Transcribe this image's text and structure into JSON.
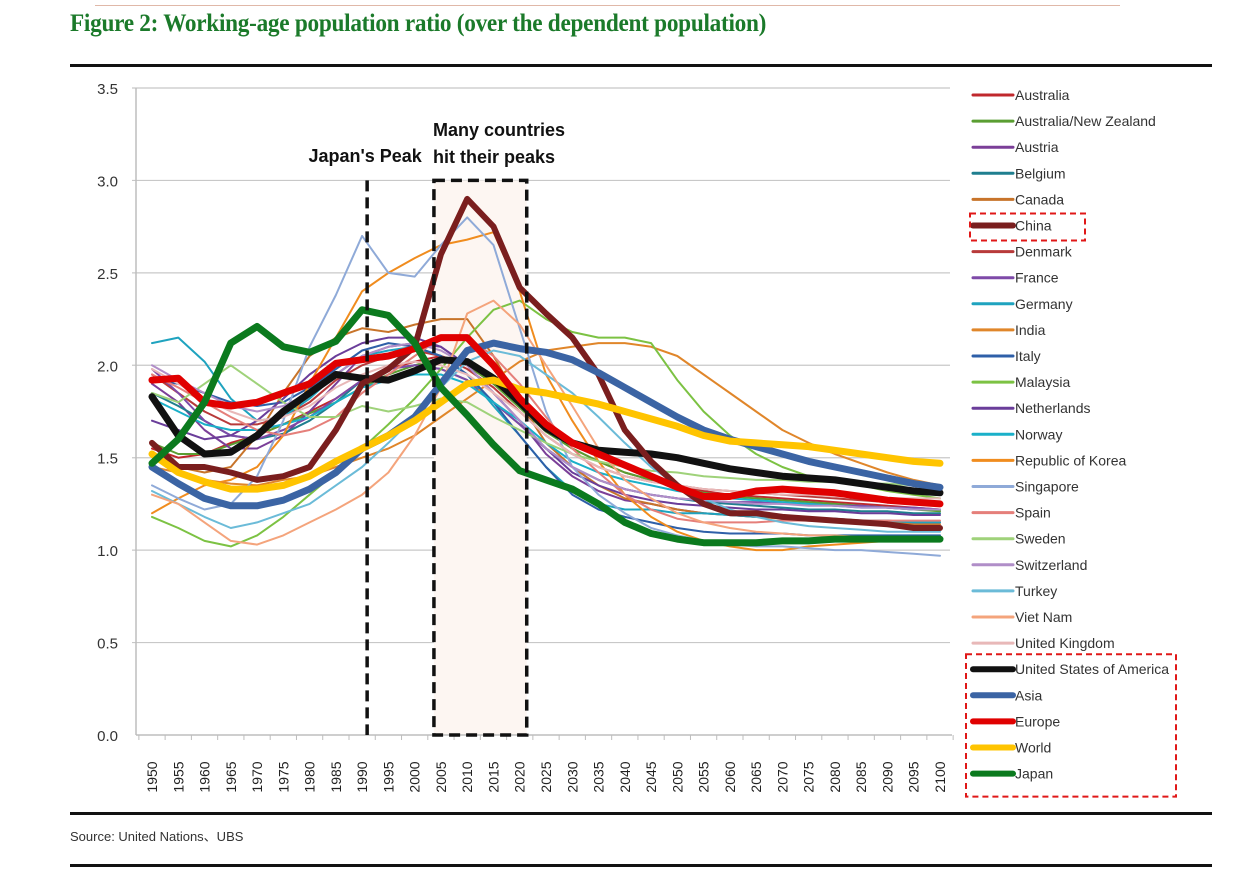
{
  "figure": {
    "title": "Figure 2:  Working-age population ratio (over the dependent population)",
    "source": "Source: United Nations、UBS",
    "title_color": "#1b7a2a"
  },
  "chart_data": {
    "type": "line",
    "title": "Figure 2:  Working-age population ratio (over the dependent population)",
    "xlabel": "",
    "ylabel": "",
    "ylim": [
      0,
      3.5
    ],
    "yticks": [
      "0.0",
      "0.5",
      "1.0",
      "1.5",
      "2.0",
      "2.5",
      "3.0",
      "3.5"
    ],
    "ytick_values": [
      0,
      0.5,
      1.0,
      1.5,
      2.0,
      2.5,
      3.0,
      3.5
    ],
    "x": [
      "1950",
      "1955",
      "1960",
      "1965",
      "1970",
      "1975",
      "1980",
      "1985",
      "1990",
      "1995",
      "2000",
      "2005",
      "2010",
      "2015",
      "2020",
      "2025",
      "2030",
      "2035",
      "2040",
      "2045",
      "2050",
      "2055",
      "2060",
      "2065",
      "2070",
      "2075",
      "2080",
      "2085",
      "2090",
      "2095",
      "2100"
    ],
    "grid": "horizontal",
    "legend_position": "right",
    "annotations": [
      {
        "type": "vline",
        "x": "1990",
        "label": "Japan's Peak",
        "y_top": 3.0
      },
      {
        "type": "box",
        "x_from": "2005",
        "x_to": "2020",
        "label_line1": "Many countries",
        "label_line2": "hit their peaks",
        "y_top": 3.0
      }
    ],
    "highlight_boxes": [
      "China",
      "United States of America / Asia / Europe / World / Japan"
    ],
    "series": [
      {
        "name": "Australia",
        "color": "#c0282d",
        "width": 2,
        "values": [
          1.55,
          1.5,
          1.52,
          1.58,
          1.62,
          1.68,
          1.75,
          1.82,
          1.92,
          1.98,
          2.02,
          2.05,
          2.0,
          1.9,
          1.78,
          1.65,
          1.55,
          1.48,
          1.42,
          1.38,
          1.35,
          1.32,
          1.3,
          1.29,
          1.28,
          1.27,
          1.26,
          1.25,
          1.24,
          1.23,
          1.22
        ]
      },
      {
        "name": "Australia/New Zealand",
        "color": "#5a9e32",
        "width": 2,
        "values": [
          1.58,
          1.52,
          1.52,
          1.57,
          1.62,
          1.68,
          1.74,
          1.8,
          1.88,
          1.95,
          2.0,
          2.04,
          2.0,
          1.9,
          1.77,
          1.64,
          1.55,
          1.48,
          1.42,
          1.38,
          1.34,
          1.31,
          1.29,
          1.28,
          1.27,
          1.26,
          1.25,
          1.24,
          1.23,
          1.22,
          1.21
        ]
      },
      {
        "name": "Austria",
        "color": "#7b3f98",
        "width": 2,
        "values": [
          1.9,
          1.8,
          1.65,
          1.55,
          1.55,
          1.62,
          1.75,
          1.9,
          2.05,
          2.1,
          2.12,
          2.1,
          2.0,
          1.85,
          1.7,
          1.52,
          1.4,
          1.32,
          1.27,
          1.25,
          1.22,
          1.2,
          1.19,
          1.18,
          1.18,
          1.17,
          1.17,
          1.16,
          1.16,
          1.15,
          1.15
        ]
      },
      {
        "name": "Belgium",
        "color": "#1f7f8f",
        "width": 2,
        "values": [
          1.85,
          1.78,
          1.7,
          1.62,
          1.6,
          1.63,
          1.7,
          1.8,
          1.92,
          1.98,
          2.0,
          1.98,
          1.92,
          1.8,
          1.68,
          1.55,
          1.45,
          1.38,
          1.33,
          1.3,
          1.28,
          1.26,
          1.25,
          1.24,
          1.23,
          1.22,
          1.22,
          1.21,
          1.21,
          1.2,
          1.2
        ]
      },
      {
        "name": "Canada",
        "color": "#c8742a",
        "width": 2,
        "values": [
          1.58,
          1.45,
          1.42,
          1.45,
          1.62,
          1.85,
          2.05,
          2.15,
          2.2,
          2.18,
          2.22,
          2.25,
          2.25,
          2.05,
          1.8,
          1.58,
          1.45,
          1.35,
          1.28,
          1.25,
          1.22,
          1.2,
          1.19,
          1.18,
          1.17,
          1.16,
          1.16,
          1.15,
          1.15,
          1.14,
          1.14
        ]
      },
      {
        "name": "China",
        "color": "#7a1e1e",
        "width": 6,
        "values": [
          1.58,
          1.45,
          1.45,
          1.42,
          1.38,
          1.4,
          1.45,
          1.65,
          1.9,
          1.98,
          2.1,
          2.6,
          2.9,
          2.75,
          2.42,
          2.28,
          2.15,
          1.95,
          1.65,
          1.48,
          1.35,
          1.25,
          1.2,
          1.2,
          1.18,
          1.17,
          1.16,
          1.15,
          1.14,
          1.12,
          1.12
        ]
      },
      {
        "name": "Denmark",
        "color": "#b83a3a",
        "width": 2,
        "values": [
          1.95,
          1.85,
          1.75,
          1.68,
          1.68,
          1.72,
          1.8,
          1.92,
          2.0,
          2.05,
          2.08,
          2.05,
          1.98,
          1.88,
          1.75,
          1.62,
          1.52,
          1.45,
          1.4,
          1.37,
          1.35,
          1.33,
          1.32,
          1.31,
          1.3,
          1.29,
          1.28,
          1.27,
          1.26,
          1.26,
          1.25
        ]
      },
      {
        "name": "France",
        "color": "#7e4aa8",
        "width": 2,
        "values": [
          1.98,
          1.85,
          1.7,
          1.62,
          1.6,
          1.65,
          1.72,
          1.82,
          1.92,
          1.98,
          2.0,
          1.98,
          1.92,
          1.8,
          1.68,
          1.55,
          1.45,
          1.38,
          1.33,
          1.3,
          1.28,
          1.27,
          1.26,
          1.26,
          1.25,
          1.25,
          1.24,
          1.24,
          1.23,
          1.23,
          1.22
        ]
      },
      {
        "name": "Germany",
        "color": "#1fa3bf",
        "width": 2,
        "values": [
          2.12,
          2.15,
          2.02,
          1.82,
          1.7,
          1.72,
          1.82,
          1.95,
          2.05,
          2.08,
          2.1,
          2.05,
          1.95,
          1.78,
          1.62,
          1.45,
          1.32,
          1.25,
          1.22,
          1.22,
          1.2,
          1.2,
          1.19,
          1.18,
          1.18,
          1.17,
          1.17,
          1.16,
          1.16,
          1.15,
          1.15
        ]
      },
      {
        "name": "India",
        "color": "#e0862a",
        "width": 2,
        "values": [
          1.45,
          1.42,
          1.38,
          1.36,
          1.35,
          1.38,
          1.4,
          1.45,
          1.5,
          1.55,
          1.62,
          1.72,
          1.82,
          1.92,
          2.02,
          2.08,
          2.1,
          2.12,
          2.12,
          2.1,
          2.05,
          1.95,
          1.85,
          1.75,
          1.65,
          1.58,
          1.52,
          1.47,
          1.42,
          1.38,
          1.35
        ]
      },
      {
        "name": "Italy",
        "color": "#2e5fa8",
        "width": 2,
        "values": [
          1.92,
          1.9,
          1.85,
          1.8,
          1.78,
          1.8,
          1.88,
          1.98,
          2.08,
          2.12,
          2.1,
          2.05,
          1.95,
          1.8,
          1.62,
          1.45,
          1.3,
          1.22,
          1.18,
          1.15,
          1.12,
          1.1,
          1.09,
          1.09,
          1.09,
          1.08,
          1.08,
          1.08,
          1.08,
          1.08,
          1.08
        ]
      },
      {
        "name": "Malaysia",
        "color": "#7cc243",
        "width": 2,
        "values": [
          1.18,
          1.12,
          1.05,
          1.02,
          1.08,
          1.18,
          1.3,
          1.42,
          1.55,
          1.68,
          1.82,
          1.98,
          2.15,
          2.3,
          2.35,
          2.25,
          2.18,
          2.15,
          2.15,
          2.12,
          1.92,
          1.75,
          1.62,
          1.52,
          1.45,
          1.4,
          1.37,
          1.35,
          1.32,
          1.3,
          1.28
        ]
      },
      {
        "name": "Netherlands",
        "color": "#6a3d9a",
        "width": 2,
        "values": [
          1.7,
          1.65,
          1.6,
          1.62,
          1.7,
          1.82,
          1.95,
          2.05,
          2.12,
          2.15,
          2.15,
          2.1,
          2.0,
          1.85,
          1.7,
          1.55,
          1.42,
          1.35,
          1.3,
          1.27,
          1.25,
          1.24,
          1.23,
          1.22,
          1.22,
          1.21,
          1.21,
          1.2,
          1.2,
          1.19,
          1.19
        ]
      },
      {
        "name": "Norway",
        "color": "#1ab0c9",
        "width": 2,
        "values": [
          1.82,
          1.75,
          1.68,
          1.65,
          1.65,
          1.68,
          1.72,
          1.8,
          1.88,
          1.92,
          1.95,
          1.95,
          1.9,
          1.8,
          1.7,
          1.58,
          1.48,
          1.42,
          1.38,
          1.35,
          1.32,
          1.3,
          1.28,
          1.27,
          1.26,
          1.25,
          1.24,
          1.23,
          1.23,
          1.22,
          1.22
        ]
      },
      {
        "name": "Republic of Korea",
        "color": "#f08c1e",
        "width": 2,
        "values": [
          1.2,
          1.28,
          1.35,
          1.38,
          1.45,
          1.62,
          1.9,
          2.15,
          2.4,
          2.5,
          2.58,
          2.65,
          2.68,
          2.72,
          2.4,
          1.95,
          1.7,
          1.48,
          1.3,
          1.18,
          1.1,
          1.05,
          1.02,
          1.0,
          1.0,
          1.02,
          1.03,
          1.04,
          1.05,
          1.05,
          1.05
        ]
      },
      {
        "name": "Singapore",
        "color": "#8faad8",
        "width": 2,
        "values": [
          1.35,
          1.28,
          1.22,
          1.25,
          1.4,
          1.7,
          2.1,
          2.38,
          2.7,
          2.5,
          2.48,
          2.65,
          2.8,
          2.65,
          2.2,
          1.75,
          1.45,
          1.3,
          1.2,
          1.12,
          1.08,
          1.05,
          1.03,
          1.02,
          1.02,
          1.01,
          1.0,
          1.0,
          0.99,
          0.98,
          0.97
        ]
      },
      {
        "name": "Spain",
        "color": "#e57f7a",
        "width": 2,
        "values": [
          1.95,
          1.88,
          1.8,
          1.72,
          1.65,
          1.62,
          1.65,
          1.72,
          1.85,
          1.95,
          2.05,
          2.15,
          2.15,
          2.05,
          1.9,
          1.72,
          1.55,
          1.42,
          1.3,
          1.22,
          1.17,
          1.15,
          1.15,
          1.15,
          1.16,
          1.16,
          1.16,
          1.16,
          1.16,
          1.16,
          1.16
        ]
      },
      {
        "name": "Sweden",
        "color": "#9fd27a",
        "width": 2,
        "values": [
          1.85,
          1.8,
          1.9,
          2.0,
          1.9,
          1.8,
          1.72,
          1.72,
          1.78,
          1.75,
          1.78,
          1.82,
          1.8,
          1.72,
          1.65,
          1.58,
          1.52,
          1.48,
          1.45,
          1.43,
          1.42,
          1.4,
          1.39,
          1.38,
          1.38,
          1.37,
          1.37,
          1.36,
          1.36,
          1.35,
          1.35
        ]
      },
      {
        "name": "Switzerland",
        "color": "#b08ec8",
        "width": 2,
        "values": [
          2.0,
          1.92,
          1.85,
          1.78,
          1.75,
          1.78,
          1.85,
          1.95,
          2.05,
          2.1,
          2.12,
          2.08,
          2.0,
          1.85,
          1.7,
          1.55,
          1.45,
          1.38,
          1.33,
          1.3,
          1.28,
          1.27,
          1.26,
          1.25,
          1.25,
          1.24,
          1.24,
          1.23,
          1.23,
          1.22,
          1.22
        ]
      },
      {
        "name": "Turkey",
        "color": "#6bbbd8",
        "width": 2,
        "values": [
          1.32,
          1.25,
          1.18,
          1.12,
          1.15,
          1.2,
          1.25,
          1.35,
          1.45,
          1.58,
          1.72,
          1.88,
          2.02,
          2.08,
          2.05,
          1.95,
          1.85,
          1.72,
          1.58,
          1.45,
          1.35,
          1.28,
          1.22,
          1.18,
          1.15,
          1.13,
          1.12,
          1.11,
          1.1,
          1.1,
          1.1
        ]
      },
      {
        "name": "Viet Nam",
        "color": "#f4a47c",
        "width": 2,
        "values": [
          1.3,
          1.25,
          1.15,
          1.05,
          1.03,
          1.08,
          1.15,
          1.22,
          1.3,
          1.42,
          1.62,
          1.88,
          2.28,
          2.35,
          2.22,
          2.0,
          1.78,
          1.55,
          1.38,
          1.28,
          1.2,
          1.15,
          1.12,
          1.1,
          1.09,
          1.08,
          1.08,
          1.07,
          1.07,
          1.06,
          1.06
        ]
      },
      {
        "name": "United Kingdom",
        "color": "#e8b8b8",
        "width": 2,
        "values": [
          1.98,
          1.9,
          1.82,
          1.75,
          1.7,
          1.72,
          1.78,
          1.88,
          1.95,
          2.0,
          2.02,
          2.0,
          1.95,
          1.85,
          1.75,
          1.62,
          1.52,
          1.45,
          1.4,
          1.37,
          1.35,
          1.33,
          1.32,
          1.31,
          1.3,
          1.3,
          1.29,
          1.29,
          1.28,
          1.28,
          1.28
        ]
      },
      {
        "name": "United States of America",
        "color": "#111111",
        "width": 6,
        "values": [
          1.83,
          1.62,
          1.52,
          1.53,
          1.62,
          1.75,
          1.85,
          1.95,
          1.93,
          1.92,
          1.97,
          2.03,
          2.02,
          1.93,
          1.8,
          1.66,
          1.58,
          1.54,
          1.53,
          1.52,
          1.5,
          1.47,
          1.44,
          1.42,
          1.4,
          1.39,
          1.38,
          1.36,
          1.34,
          1.32,
          1.31
        ]
      },
      {
        "name": "Asia",
        "color": "#3b64a4",
        "width": 7,
        "values": [
          1.45,
          1.36,
          1.28,
          1.24,
          1.24,
          1.27,
          1.33,
          1.42,
          1.55,
          1.62,
          1.72,
          1.9,
          2.08,
          2.12,
          2.09,
          2.07,
          2.03,
          1.96,
          1.88,
          1.8,
          1.72,
          1.65,
          1.6,
          1.56,
          1.52,
          1.48,
          1.45,
          1.42,
          1.39,
          1.36,
          1.34
        ]
      },
      {
        "name": "Europe",
        "color": "#e00000",
        "width": 7,
        "values": [
          1.92,
          1.93,
          1.8,
          1.78,
          1.8,
          1.85,
          1.9,
          2.01,
          2.03,
          2.05,
          2.09,
          2.15,
          2.15,
          2.0,
          1.82,
          1.68,
          1.58,
          1.52,
          1.46,
          1.4,
          1.34,
          1.29,
          1.29,
          1.32,
          1.33,
          1.32,
          1.31,
          1.29,
          1.27,
          1.26,
          1.25
        ]
      },
      {
        "name": "World",
        "color": "#ffc400",
        "width": 7,
        "values": [
          1.52,
          1.42,
          1.37,
          1.33,
          1.33,
          1.35,
          1.4,
          1.48,
          1.55,
          1.62,
          1.7,
          1.8,
          1.9,
          1.92,
          1.87,
          1.85,
          1.82,
          1.79,
          1.75,
          1.71,
          1.67,
          1.62,
          1.59,
          1.58,
          1.57,
          1.56,
          1.54,
          1.52,
          1.5,
          1.48,
          1.47
        ]
      },
      {
        "name": "Japan",
        "color": "#0b7a1e",
        "width": 7,
        "values": [
          1.47,
          1.6,
          1.8,
          2.12,
          2.21,
          2.1,
          2.07,
          2.13,
          2.3,
          2.27,
          2.12,
          1.88,
          1.73,
          1.57,
          1.43,
          1.38,
          1.33,
          1.25,
          1.15,
          1.09,
          1.06,
          1.04,
          1.04,
          1.04,
          1.05,
          1.05,
          1.06,
          1.06,
          1.06,
          1.06,
          1.06
        ]
      }
    ]
  }
}
